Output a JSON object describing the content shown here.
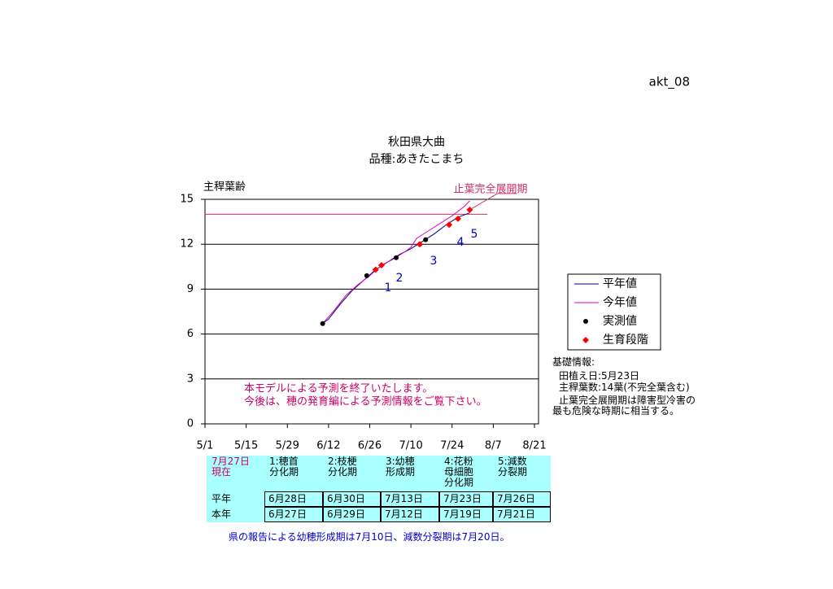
{
  "page_id": "akt_08",
  "chart_data": {
    "type": "line",
    "title": "秋田県大曲",
    "subtitle": "品種:あきたこまち",
    "y_label": "主稈葉齢",
    "xlim": [
      "5/1",
      "8/21"
    ],
    "xticks": [
      "5/1",
      "5/15",
      "5/29",
      "6/12",
      "6/26",
      "7/10",
      "7/24",
      "8/7",
      "8/21"
    ],
    "ylim": [
      0,
      15
    ],
    "yticks": [
      0,
      3,
      6,
      9,
      12,
      15
    ],
    "grid": true,
    "series": [
      {
        "name": "平年値",
        "color": "#000080",
        "style": "line",
        "x": [
          "6/10",
          "6/12",
          "6/16",
          "6/20",
          "6/24",
          "6/28",
          "7/2",
          "7/6",
          "7/10",
          "7/14",
          "7/18",
          "7/22",
          "7/26",
          "7/30"
        ],
        "values": [
          6.7,
          7.0,
          8.0,
          8.9,
          9.6,
          10.3,
          10.8,
          11.3,
          11.7,
          12.2,
          12.7,
          13.3,
          13.8,
          14.1
        ]
      },
      {
        "name": "今年値",
        "color": "#e000c0",
        "style": "line",
        "x": [
          "6/10",
          "6/14",
          "6/18",
          "6/22",
          "6/26",
          "6/30",
          "7/4",
          "7/8",
          "7/10",
          "7/12",
          "7/16",
          "7/20",
          "7/24",
          "7/28",
          "7/30"
        ],
        "values": [
          6.7,
          7.6,
          8.6,
          9.3,
          9.9,
          10.6,
          11.0,
          11.5,
          11.8,
          12.4,
          12.9,
          13.4,
          13.9,
          14.5,
          14.9
        ]
      },
      {
        "name": "実測値",
        "color": "#000000",
        "style": "dot",
        "x": [
          "6/10",
          "6/25",
          "7/5",
          "7/15"
        ],
        "values": [
          6.7,
          9.9,
          11.1,
          12.3
        ]
      },
      {
        "name": "生育段階",
        "color": "#ff0000",
        "style": "diamond",
        "x": [
          "6/28",
          "6/30",
          "7/13",
          "7/23",
          "7/26",
          "7/30"
        ],
        "values": [
          10.3,
          10.6,
          12.0,
          13.3,
          13.7,
          14.3
        ]
      }
    ],
    "ref_line": {
      "value": 14,
      "from": "5/1",
      "to": "8/5",
      "color": "#cc3366"
    },
    "annotation": "止葉完全展開期",
    "stage_labels": [
      "1",
      "2",
      "3",
      "4",
      "5"
    ],
    "messages": [
      "本モデルによる予測を終了いたします。",
      "今後は、穂の発育編による予測情報をご覧下さい。"
    ]
  },
  "info": {
    "title": "基礎情報:",
    "lines": [
      "田植え日:5月23日",
      "主稈葉数:14葉(不完全葉含む)"
    ],
    "note": [
      "止葉完全展開期は障害型冷害の",
      "最も危険な時期に相当する。"
    ]
  },
  "table": {
    "header": [
      [
        "7月27日",
        "現在"
      ],
      [
        "1:穂首",
        "分化期"
      ],
      [
        "2:枝梗",
        "分化期"
      ],
      [
        "3:幼穂",
        "形成期"
      ],
      [
        "4:花粉",
        "母細胞",
        "分化期"
      ],
      [
        "5:減数",
        "分裂期"
      ]
    ],
    "rows": [
      [
        "平年",
        "6月28日",
        "6月30日",
        "7月13日",
        "7月23日",
        "7月26日"
      ],
      [
        "本年",
        "6月27日",
        "6月29日",
        "7月12日",
        "7月19日",
        "7月21日"
      ]
    ]
  },
  "footnote": "県の報告による幼穂形成期は7月10日、減数分裂期は7月20日。"
}
